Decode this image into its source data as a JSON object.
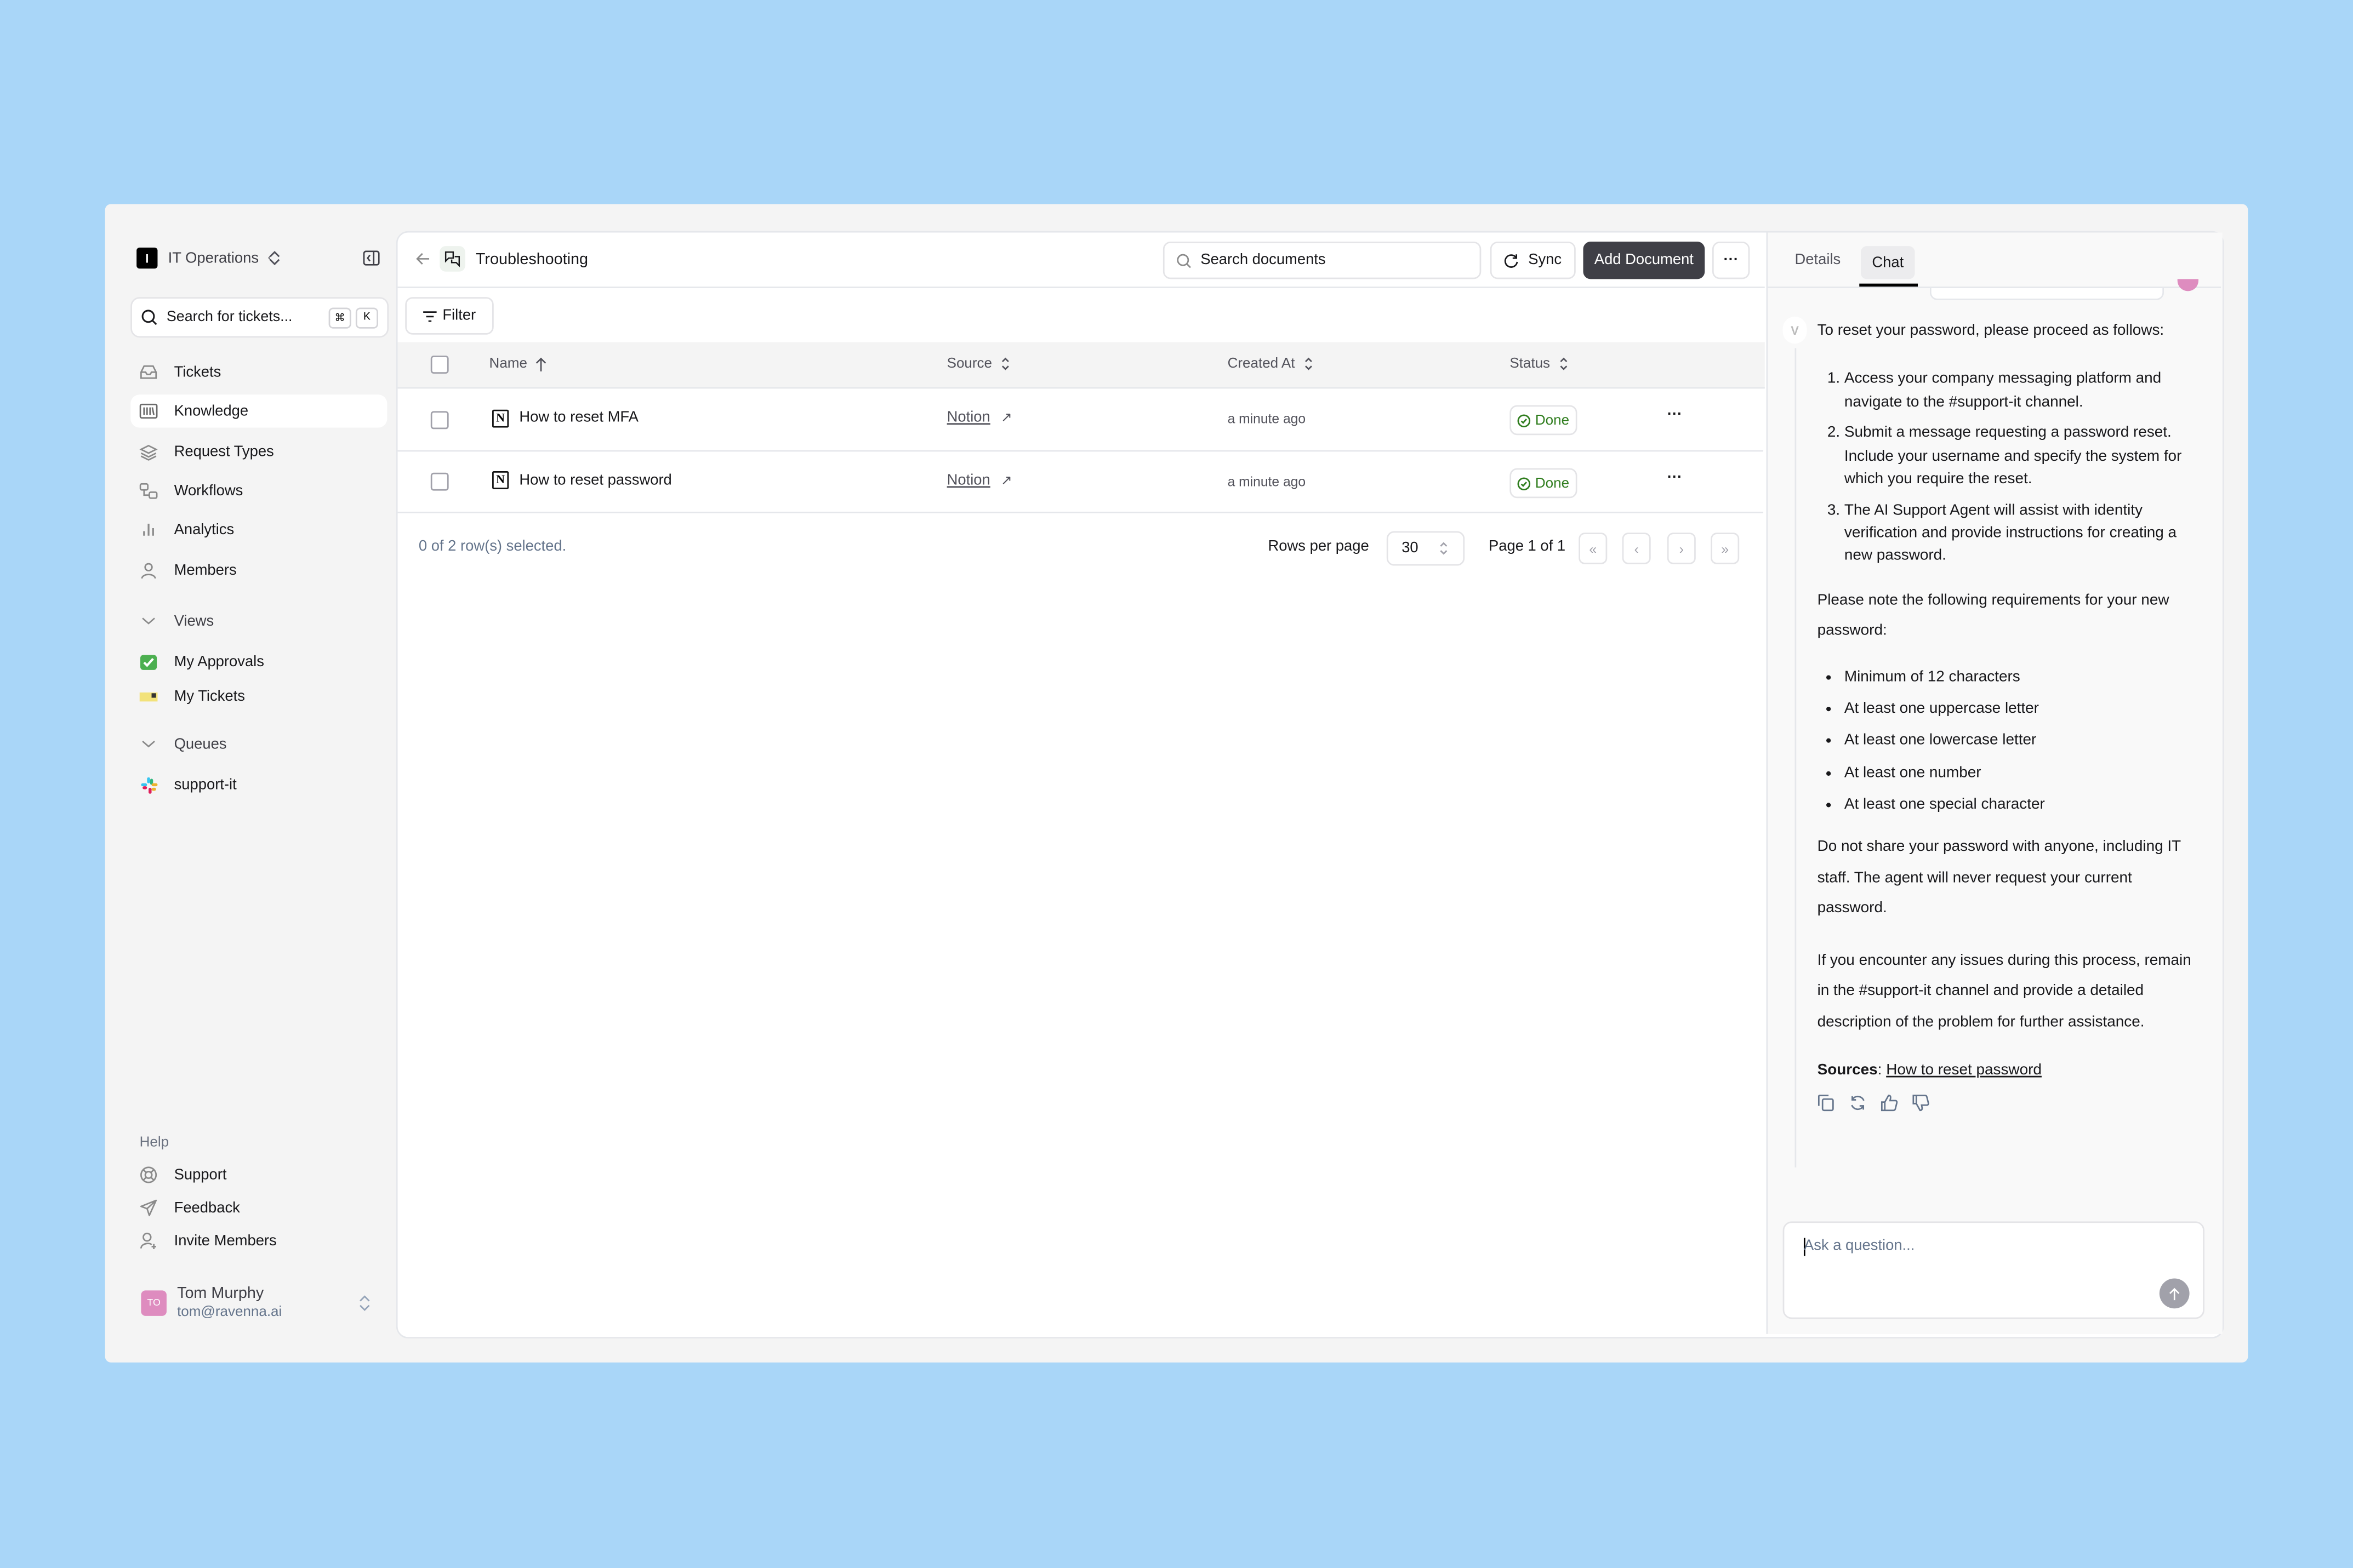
{
  "sidebar": {
    "workspace": {
      "initial": "I",
      "name": "IT Operations"
    },
    "search": {
      "placeholder": "Search for tickets...",
      "shortcut_keys": [
        "⌘",
        "K"
      ]
    },
    "nav": [
      {
        "label": "Tickets",
        "icon": "inbox-icon"
      },
      {
        "label": "Knowledge",
        "icon": "library-icon",
        "selected": true
      },
      {
        "label": "Request Types",
        "icon": "layers-icon"
      },
      {
        "label": "Workflows",
        "icon": "workflow-icon"
      },
      {
        "label": "Analytics",
        "icon": "bar-chart-icon"
      },
      {
        "label": "Members",
        "icon": "user-icon"
      }
    ],
    "views": {
      "label": "Views",
      "items": [
        {
          "label": "My Approvals",
          "icon": "check-box-emoji-icon"
        },
        {
          "label": "My Tickets",
          "icon": "ticket-emoji-icon"
        }
      ]
    },
    "queues": {
      "label": "Queues",
      "items": [
        {
          "label": "support-it",
          "icon": "slack-icon"
        }
      ]
    },
    "help": {
      "label": "Help",
      "items": [
        {
          "label": "Support",
          "icon": "life-buoy-icon"
        },
        {
          "label": "Feedback",
          "icon": "send-icon"
        },
        {
          "label": "Invite Members",
          "icon": "user-plus-icon"
        }
      ]
    },
    "user": {
      "initials": "TO",
      "name": "Tom Murphy",
      "email": "tom@ravenna.ai",
      "avatar_color": "#de8cbf"
    }
  },
  "header": {
    "title": "Troubleshooting",
    "search_placeholder": "Search documents",
    "sync_label": "Sync",
    "add_label": "Add Document",
    "more_label": "···"
  },
  "toolbar": {
    "filter_label": "Filter"
  },
  "table": {
    "columns": [
      "Name",
      "Source",
      "Created At",
      "Status"
    ],
    "rows": [
      {
        "name": "How to reset MFA",
        "source": "Notion",
        "created": "a minute ago",
        "status": "Done"
      },
      {
        "name": "How to reset password",
        "source": "Notion",
        "created": "a minute ago",
        "status": "Done"
      }
    ],
    "selection_text": "0 of 2 row(s) selected.",
    "rows_per_page_label": "Rows per page",
    "rows_per_page": "30",
    "page_text": "Page 1 of 1",
    "status_color": "#2f7d1e"
  },
  "chat": {
    "tabs": [
      "Details",
      "Chat"
    ],
    "active_tab": "Chat",
    "intro": "To reset your password, please proceed as follows:",
    "steps": [
      "Access your company messaging platform and navigate to the #support-it channel.",
      "Submit a message requesting a password reset. Include your username and specify the system for which you require the reset.",
      "The AI Support Agent will assist with identity verification and provide instructions for creating a new password."
    ],
    "requirements_intro": "Please note the following requirements for your new password:",
    "requirements": [
      "Minimum of 12 characters",
      "At least one uppercase letter",
      "At least one lowercase letter",
      "At least one number",
      "At least one special character"
    ],
    "warning": "Do not share your password with anyone, including IT staff. The agent will never request your current password.",
    "issues": "If you encounter any issues during this process, remain in the #support-it channel and provide a detailed description of the problem for further assistance.",
    "sources_label": "Sources",
    "source_link": "How to reset password",
    "input_placeholder": "Ask a question..."
  }
}
